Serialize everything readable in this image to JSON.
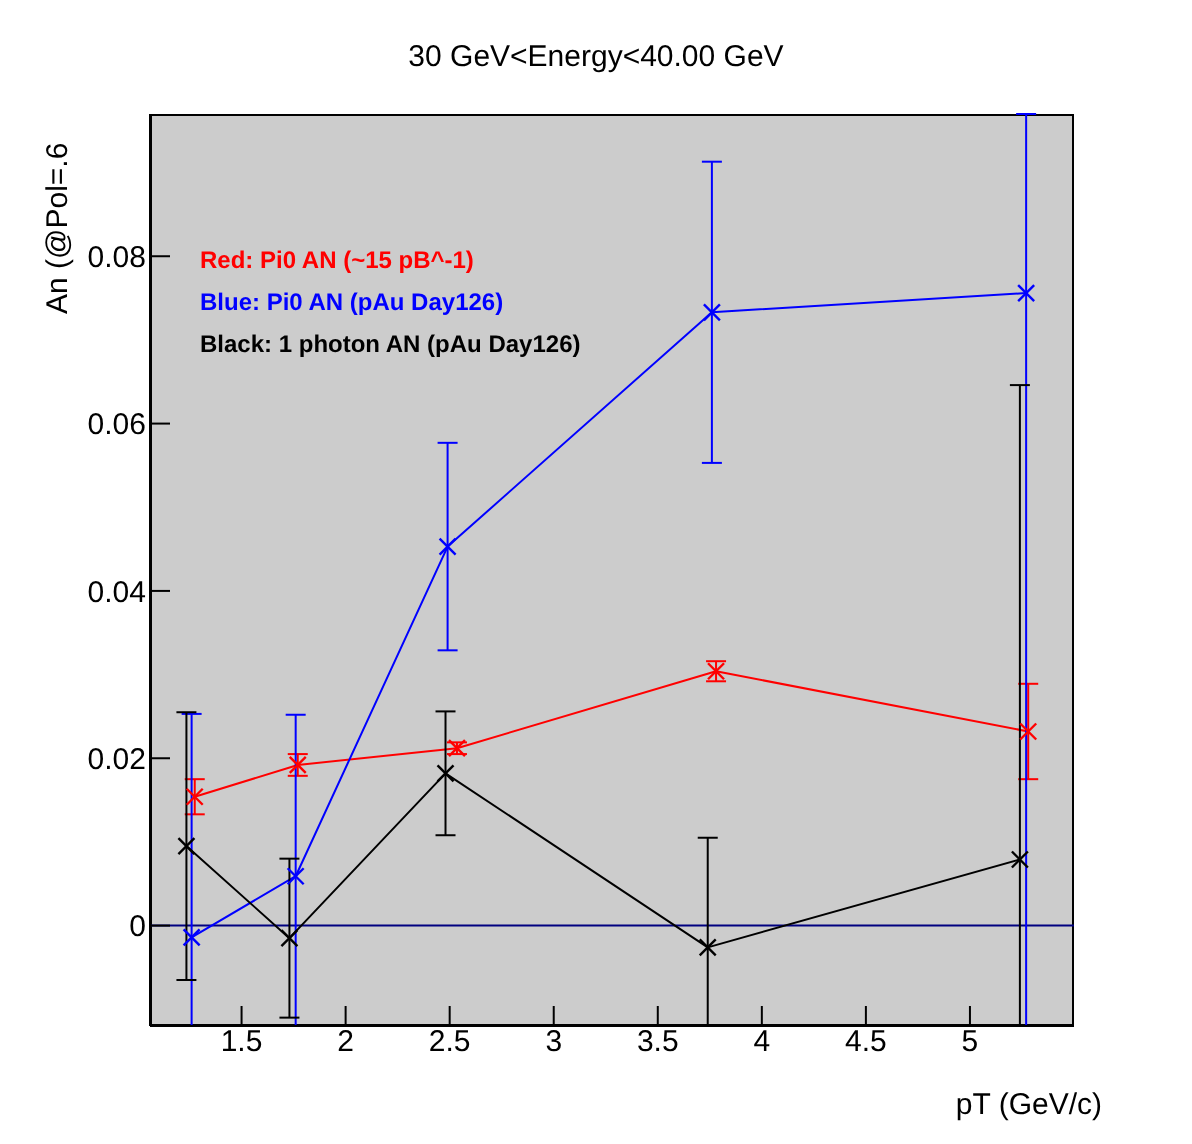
{
  "chart_data": {
    "type": "line",
    "title": "30 GeV<Energy<40.00 GeV",
    "xlabel": "pT (GeV/c)",
    "ylabel": "An (@Pol=.6",
    "xlim": [
      1.06,
      5.5
    ],
    "xticks": [
      1.5,
      2,
      2.5,
      3,
      3.5,
      4,
      4.5,
      5
    ],
    "ylim": [
      -0.012,
      0.097
    ],
    "yticks": [
      0,
      0.02,
      0.04,
      0.06,
      0.08
    ],
    "grid": false,
    "legend": "top left",
    "marker": "cross",
    "line_style": "solid",
    "ref_lines": [
      {
        "axis": "y",
        "value": 0,
        "color": "#000080"
      }
    ],
    "series": [
      {
        "name": "Red: Pi0 AN (~15 pB^-1)",
        "color": "#ff0000",
        "x": [
          1.275,
          1.77,
          2.535,
          3.78,
          5.28
        ],
        "values": [
          0.0154,
          0.0192,
          0.0212,
          0.0304,
          0.0232
        ],
        "errors": [
          0.0021,
          0.0013,
          0.0007,
          0.0012,
          0.0057
        ]
      },
      {
        "name": "Blue: Pi0 AN (pAu Day126)",
        "color": "#0000ff",
        "x": [
          1.26,
          1.76,
          2.49,
          3.76,
          5.27
        ],
        "values": [
          -0.0014,
          0.0059,
          0.0453,
          0.0733,
          0.0756
        ],
        "errors": [
          [
            -0.012,
            0.0253
          ],
          [
            -0.012,
            0.0252
          ],
          0.0124,
          0.018,
          [
            -0.012,
            0.097
          ]
        ]
      },
      {
        "name": "Black: 1 photon AN (pAu Day126)",
        "color": "#000000",
        "x": [
          1.235,
          1.73,
          2.48,
          3.74,
          5.24
        ],
        "values": [
          0.0095,
          -0.0015,
          0.0182,
          -0.0026,
          0.0079
        ],
        "errors": [
          0.016,
          0.0095,
          0.0074,
          [
            -0.012,
            0.0105
          ],
          [
            -0.012,
            0.0646
          ]
        ]
      }
    ]
  }
}
